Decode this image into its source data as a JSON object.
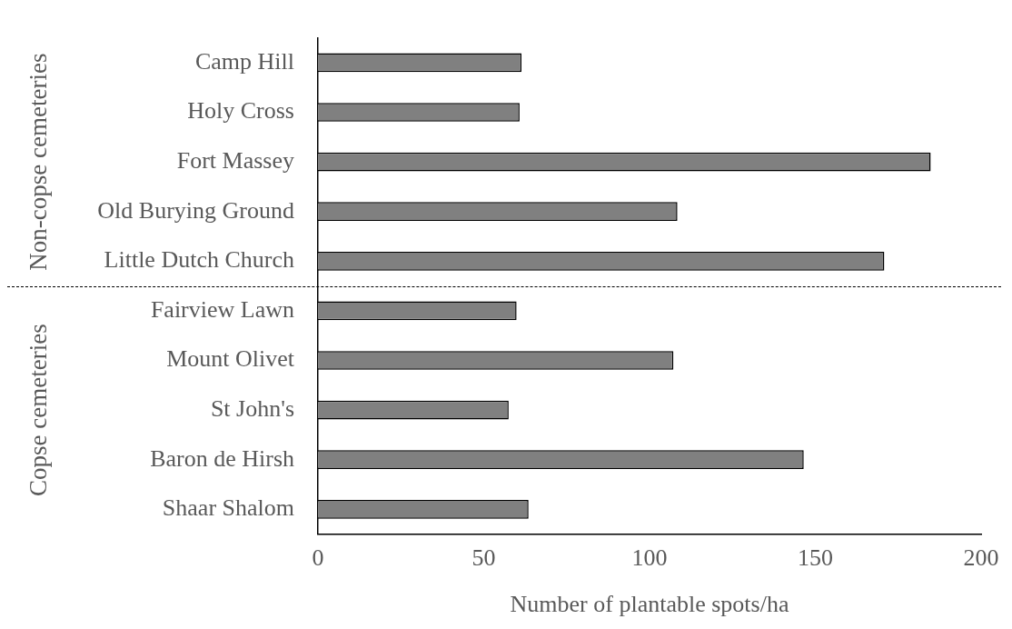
{
  "chart_data": {
    "type": "bar",
    "orientation": "horizontal",
    "xlabel": "Number of plantable spots/ha",
    "categories": [
      "Camp Hill",
      "Holy Cross",
      "Fort Massey",
      "Old Burying Ground",
      "Little Dutch Church",
      "Fairview Lawn",
      "Mount Olivet",
      "St John's",
      "Baron de Hirsh",
      "Shaar Shalom"
    ],
    "values": [
      61.4,
      60.8,
      184.8,
      108.4,
      170.8,
      59.9,
      107.2,
      57.5,
      146.5,
      63.5
    ],
    "color": "#808080",
    "xlim": [
      0,
      200
    ],
    "xticks": [
      0,
      50,
      100,
      150,
      200
    ],
    "grid": false,
    "legend": false,
    "annotations": [
      "Non-copse cemeteries",
      "Copse cemeteries"
    ]
  }
}
